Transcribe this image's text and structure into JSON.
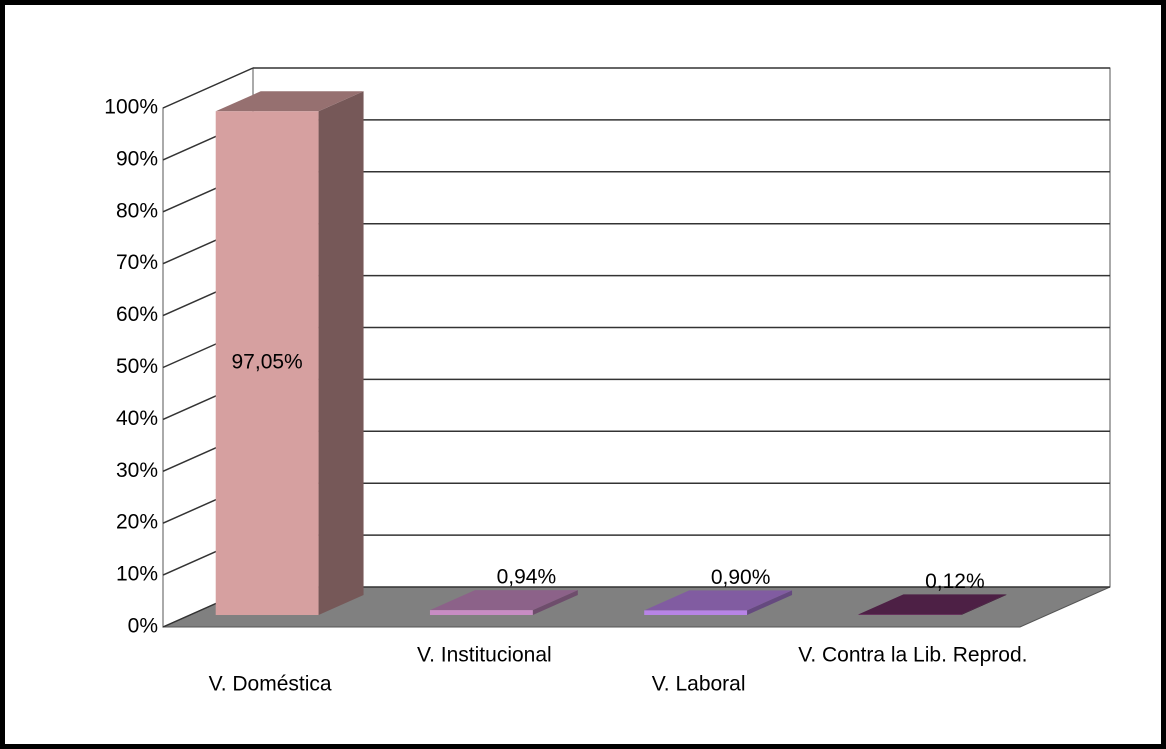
{
  "chart_data": {
    "type": "bar3d",
    "categories": [
      "V. Doméstica",
      "V. Institucional",
      "V. Laboral",
      "V. Contra la Lib. Reprod."
    ],
    "values": [
      97.05,
      0.94,
      0.9,
      0.12
    ],
    "value_labels": [
      "97,05%",
      "0,94%",
      "0,90%",
      "0,12%"
    ],
    "colors": [
      "#d6a0a0",
      "#c88cc4",
      "#b884e6",
      "#6e2e62"
    ],
    "ylim": [
      0,
      100
    ],
    "yticks": [
      {
        "value": 0,
        "label": "0%"
      },
      {
        "value": 10,
        "label": "10%"
      },
      {
        "value": 20,
        "label": "20%"
      },
      {
        "value": 30,
        "label": "30%"
      },
      {
        "value": 40,
        "label": "40%"
      },
      {
        "value": 50,
        "label": "50%"
      },
      {
        "value": 60,
        "label": "60%"
      },
      {
        "value": 70,
        "label": "70%"
      },
      {
        "value": 80,
        "label": "80%"
      },
      {
        "value": 90,
        "label": "90%"
      },
      {
        "value": 100,
        "label": "100%"
      }
    ],
    "grid": true
  }
}
